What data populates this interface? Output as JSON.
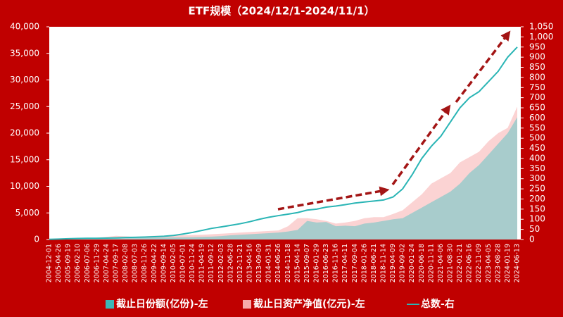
{
  "chart_data": {
    "type": "area-line",
    "title": "ETF规模（2024/12/1-2024/11/1）",
    "categories": [
      "2004-12-01",
      "2005-04-26",
      "2005-09-19",
      "2006-02-10",
      "2006-07-06",
      "2006-11-29",
      "2007-04-24",
      "2007-09-17",
      "2008-02-08",
      "2008-07-03",
      "2008-11-26",
      "2009-04-22",
      "2009-09-14",
      "2010-02-05",
      "2010-07-01",
      "2010-11-24",
      "2011-04-19",
      "2011-09-12",
      "2012-02-03",
      "2012-06-28",
      "2012-11-21",
      "2013-04-16",
      "2013-09-09",
      "2014-01-31",
      "2014-06-26",
      "2014-11-18",
      "2015-04-14",
      "2015-09-07",
      "2016-01-29",
      "2016-06-23",
      "2016-11-16",
      "2017-04-11",
      "2017-09-04",
      "2018-01-26",
      "2018-06-21",
      "2018-11-14",
      "2019-04-09",
      "2019-09-02",
      "2020-01-24",
      "2020-06-18",
      "2020-11-11",
      "2021-04-06",
      "2021-08-30",
      "2022-01-21",
      "2022-06-16",
      "2022-11-09",
      "2023-04-05",
      "2023-08-28",
      "2024-01-19",
      "2024-06-13"
    ],
    "series": [
      {
        "name": "截止日资产净值(亿元)-左",
        "kind": "area",
        "color": "#fbd3d3",
        "legend_color": "#f6aaaa",
        "values": [
          30,
          50,
          80,
          100,
          200,
          350,
          500,
          700,
          600,
          500,
          600,
          700,
          700,
          750,
          800,
          850,
          900,
          1000,
          1100,
          1200,
          1300,
          1400,
          1500,
          1600,
          1700,
          2500,
          4000,
          4000,
          3800,
          3500,
          3000,
          3200,
          3500,
          4000,
          4200,
          4200,
          4800,
          5500,
          7000,
          8500,
          10500,
          11500,
          12500,
          14500,
          15500,
          16500,
          18500,
          20000,
          21000,
          25000
        ]
      },
      {
        "name": "截止日份额(亿份)-左",
        "kind": "area",
        "color": "#a8cccc",
        "legend_color": "#3cb8b8",
        "values": [
          20,
          50,
          60,
          70,
          90,
          100,
          120,
          180,
          250,
          300,
          320,
          350,
          360,
          400,
          420,
          450,
          500,
          550,
          650,
          800,
          900,
          1000,
          1100,
          1200,
          1300,
          1500,
          1800,
          3500,
          3200,
          3300,
          2500,
          2600,
          2500,
          3000,
          3200,
          3500,
          3800,
          4000,
          5000,
          6000,
          7000,
          8000,
          9000,
          10500,
          12500,
          14000,
          16000,
          18000,
          20000,
          23000
        ]
      },
      {
        "name": "总数-右",
        "kind": "line",
        "axis": "y2",
        "color": "#2ab5b5",
        "legend_color": "#2ab5b5",
        "values": [
          1,
          2,
          4,
          5,
          6,
          6,
          7,
          8,
          10,
          11,
          12,
          14,
          16,
          20,
          27,
          35,
          45,
          55,
          62,
          70,
          78,
          88,
          100,
          110,
          118,
          125,
          133,
          145,
          150,
          160,
          165,
          172,
          180,
          185,
          190,
          195,
          210,
          250,
          320,
          400,
          460,
          510,
          580,
          650,
          700,
          730,
          780,
          830,
          900,
          950
        ]
      }
    ],
    "legend_order": [
      1,
      0,
      2
    ],
    "ylim": [
      0,
      40000
    ],
    "yticks": [
      0,
      {
        "value": 5000,
        "label": "5,000"
      },
      {
        "value": 10000,
        "label": "10,000"
      },
      {
        "value": 15000,
        "label": "15,000"
      },
      {
        "value": 20000,
        "label": "20,000"
      },
      {
        "value": 25000,
        "label": "25,000"
      },
      {
        "value": 30000,
        "label": "30,000"
      },
      {
        "value": 35000,
        "label": "35,000"
      },
      {
        "value": 40000,
        "label": "40,000"
      }
    ],
    "y2lim": [
      0,
      1050
    ],
    "y2ticks": [
      0,
      50,
      100,
      150,
      200,
      250,
      300,
      350,
      400,
      450,
      500,
      550,
      600,
      650,
      700,
      750,
      800,
      850,
      900,
      950,
      {
        "value": 1000,
        "label": "1,000"
      },
      {
        "value": 1050,
        "label": "1,050"
      }
    ]
  }
}
